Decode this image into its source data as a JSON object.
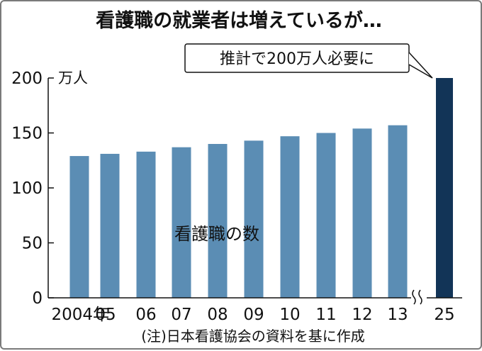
{
  "chart_data": {
    "type": "bar",
    "title": "看護職の就業者は増えているが…",
    "ylabel": "万人",
    "ylim": [
      0,
      200
    ],
    "yticks": [
      "0",
      "50",
      "100",
      "150",
      "200"
    ],
    "categories": [
      "2004年",
      "05",
      "06",
      "07",
      "08",
      "09",
      "10",
      "11",
      "12",
      "13",
      "25"
    ],
    "values": [
      129,
      131,
      133,
      137,
      140,
      143,
      147,
      150,
      154,
      157,
      200
    ],
    "series_label": "看護職の数",
    "axis_break": "between 13 and 25",
    "annotation": "推計で200万人必要に",
    "source": "(注)日本看護協会の資料を基に作成",
    "grid": false,
    "colors": {
      "bar": "#5b8db4",
      "projection_bar": "#123457",
      "text": "#111111",
      "frame": "#7a7a7a"
    }
  }
}
